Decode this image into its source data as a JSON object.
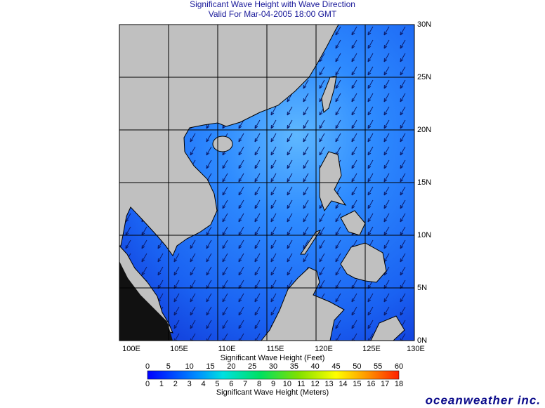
{
  "header": {
    "title": "Significant Wave Height with Wave Direction",
    "subtitle": "Valid For Mar-04-2005 18:00 GMT"
  },
  "map": {
    "lat_labels": [
      "30N",
      "25N",
      "20N",
      "15N",
      "10N",
      "5N",
      "0N"
    ],
    "lon_labels": [
      "100E",
      "105E",
      "110E",
      "115E",
      "120E",
      "125E",
      "130E"
    ]
  },
  "legend": {
    "feet_label": "Significant Wave Height (Feet)",
    "feet_ticks": [
      0,
      5,
      10,
      15,
      20,
      25,
      30,
      35,
      40,
      45,
      50,
      55,
      60
    ],
    "meter_label": "Significant Wave Height (Meters)",
    "meter_ticks": [
      0,
      1,
      2,
      3,
      4,
      5,
      6,
      7,
      8,
      9,
      10,
      11,
      12,
      13,
      14,
      15,
      16,
      17,
      18
    ]
  },
  "logo": "oceanweather inc."
}
